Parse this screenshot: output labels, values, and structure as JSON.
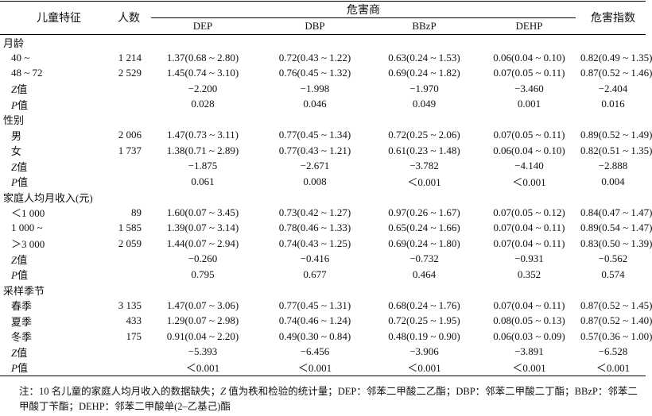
{
  "header": {
    "feature": "儿童特征",
    "count": "人数",
    "hq": "危害商",
    "hi": "危害指数",
    "sub": [
      "DEP",
      "DBP",
      "BBzP",
      "DEHP"
    ]
  },
  "sections": [
    {
      "title": "月龄",
      "rows": [
        {
          "label": "40 ~",
          "n": "1 214",
          "dep": "1.37(0.68 ~ 2.80)",
          "dbp": "0.72(0.43 ~ 1.22)",
          "bbzp": "0.63(0.24 ~ 1.53)",
          "dehp": "0.06(0.04 ~ 0.10)",
          "hi": "0.82(0.49 ~ 1.35)"
        },
        {
          "label": "48 ~ 72",
          "n": "2 529",
          "dep": "1.45(0.74 ~ 3.10)",
          "dbp": "0.76(0.45 ~ 1.32)",
          "bbzp": "0.69(0.24 ~ 1.82)",
          "dehp": "0.07(0.05 ~ 0.11)",
          "hi": "0.87(0.52 ~ 1.46)"
        }
      ],
      "z": {
        "label_i": "Z",
        "label": "值",
        "dep": "−2.200",
        "dbp": "−1.998",
        "bbzp": "−1.970",
        "dehp": "−3.460",
        "hi": "−2.404"
      },
      "p": {
        "label_i": "P",
        "label": "值",
        "dep": "0.028",
        "dbp": "0.046",
        "bbzp": "0.049",
        "dehp": "0.001",
        "hi": "0.016"
      }
    },
    {
      "title": "性别",
      "rows": [
        {
          "label": "男",
          "n": "2 006",
          "dep": "1.47(0.73 ~ 3.11)",
          "dbp": "0.77(0.45 ~ 1.34)",
          "bbzp": "0.72(0.25 ~ 2.06)",
          "dehp": "0.07(0.05 ~ 0.11)",
          "hi": "0.89(0.52 ~ 1.49)"
        },
        {
          "label": "女",
          "n": "1 737",
          "dep": "1.38(0.71 ~ 2.89)",
          "dbp": "0.77(0.43 ~ 1.21)",
          "bbzp": "0.61(0.23 ~ 1.48)",
          "dehp": "0.06(0.04 ~ 0.10)",
          "hi": "0.82(0.51 ~ 1.35)"
        }
      ],
      "z": {
        "label_i": "Z",
        "label": "值",
        "dep": "−1.875",
        "dbp": "−2.671",
        "bbzp": "−3.782",
        "dehp": "−4.140",
        "hi": "−2.888"
      },
      "p": {
        "label_i": "P",
        "label": "值",
        "dep": "0.061",
        "dbp": "0.008",
        "bbzp": "＜0.001",
        "dehp": "＜0.001",
        "hi": "0.004"
      }
    },
    {
      "title": "家庭人均月收入(元)",
      "rows": [
        {
          "label": "＜1 000",
          "n": "89",
          "dep": "1.60(0.07 ~ 3.45)",
          "dbp": "0.73(0.42 ~ 1.27)",
          "bbzp": "0.97(0.26 ~ 1.67)",
          "dehp": "0.07(0.05 ~ 0.12)",
          "hi": "0.84(0.47 ~ 1.47)"
        },
        {
          "label": "1 000 ~",
          "n": "1 585",
          "dep": "1.39(0.07 ~ 3.14)",
          "dbp": "0.78(0.46 ~ 1.33)",
          "bbzp": "0.65(0.24 ~ 1.66)",
          "dehp": "0.07(0.04 ~ 0.11)",
          "hi": "0.89(0.54 ~ 1.47)"
        },
        {
          "label": "＞3 000",
          "n": "2 059",
          "dep": "1.44(0.07 ~ 2.94)",
          "dbp": "0.74(0.43 ~ 1.25)",
          "bbzp": "0.69(0.24 ~ 1.80)",
          "dehp": "0.07(0.04 ~ 0.11)",
          "hi": "0.83(0.50 ~ 1.39)"
        }
      ],
      "z": {
        "label_i": "Z",
        "label": "值",
        "dep": "−0.260",
        "dbp": "−0.416",
        "bbzp": "−0.732",
        "dehp": "−0.931",
        "hi": "−0.562"
      },
      "p": {
        "label_i": "P",
        "label": "值",
        "dep": "0.795",
        "dbp": "0.677",
        "bbzp": "0.464",
        "dehp": "0.352",
        "hi": "0.574"
      }
    },
    {
      "title": "采样季节",
      "rows": [
        {
          "label": "春季",
          "n": "3 135",
          "dep": "1.47(0.07 ~ 3.06)",
          "dbp": "0.77(0.45 ~ 1.31)",
          "bbzp": "0.68(0.24 ~ 1.76)",
          "dehp": "0.07(0.04 ~ 0.11)",
          "hi": "0.87(0.52 ~ 1.45)"
        },
        {
          "label": "夏季",
          "n": "433",
          "dep": "1.29(0.07 ~ 2.98)",
          "dbp": "0.74(0.46 ~ 1.24)",
          "bbzp": "0.72(0.25 ~ 1.95)",
          "dehp": "0.08(0.05 ~ 0.13)",
          "hi": "0.87(0.52 ~ 1.40)"
        },
        {
          "label": "冬季",
          "n": "175",
          "dep": "0.91(0.04 ~ 2.20)",
          "dbp": "0.49(0.30 ~ 0.84)",
          "bbzp": "0.48(0.19 ~ 0.90)",
          "dehp": "0.06(0.03 ~ 0.09)",
          "hi": "0.57(0.36 ~ 1.00)"
        }
      ],
      "z": {
        "label_i": "Z",
        "label": "值",
        "dep": "−5.393",
        "dbp": "−6.456",
        "bbzp": "−3.906",
        "dehp": "−3.891",
        "hi": "−6.528"
      },
      "p": {
        "label_i": "P",
        "label": "值",
        "dep": "＜0.001",
        "dbp": "＜0.001",
        "bbzp": "＜0.001",
        "dehp": "＜0.001",
        "hi": "＜0.001"
      }
    }
  ],
  "note": {
    "prefix": "注：10 名儿童的家庭人均月收入的数据缺失；",
    "z_italic": "Z",
    "rest": " 值为秩和检验的统计量；DEP：邻苯二甲酸二乙酯；DBP：邻苯二甲酸二丁酯；BBzP：邻苯二甲酸丁苄酯；DEHP：邻苯二甲酸单(2–乙基己)酯"
  }
}
